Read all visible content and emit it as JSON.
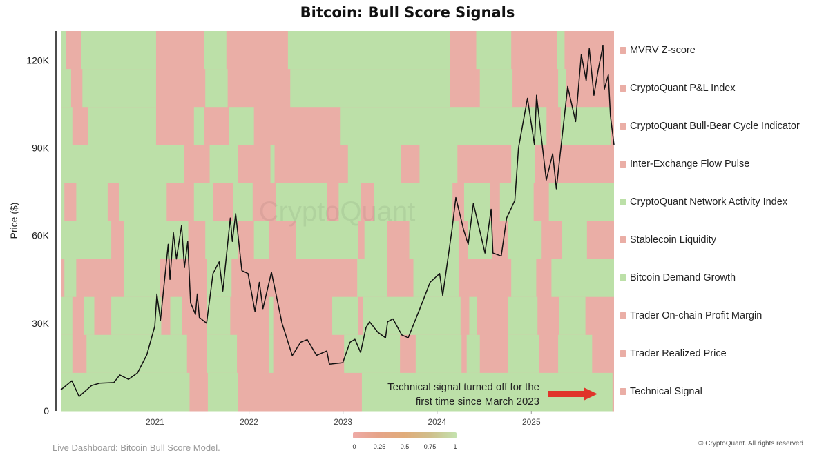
{
  "page": {
    "title": "Bitcoin: Bull Score Signals"
  },
  "chart_data": {
    "type": "heatmap",
    "title": "Bitcoin: Bull Score Signals",
    "ylabel": "Price ($)",
    "xlabel": "",
    "x_range": [
      "2020-01-01",
      "2025-11-18"
    ],
    "ylim": [
      0,
      130000
    ],
    "y_ticks": [
      0,
      30000,
      60000,
      90000,
      120000
    ],
    "y_tick_labels": [
      "0",
      "30K",
      "60K",
      "90K",
      "120K"
    ],
    "x_ticks": [
      "2021-01-01",
      "2022-01-01",
      "2023-01-01",
      "2024-01-01",
      "2025-01-01"
    ],
    "x_tick_labels": [
      "2021",
      "2022",
      "2023",
      "2024",
      "2025"
    ],
    "colors": {
      "on": "#bce0a8",
      "off": "#eaaea6",
      "price_line": "#111111",
      "arrow": "#e0342a"
    },
    "signals": [
      {
        "name": "MVRV Z-score",
        "latest": 0,
        "on_periods": [
          [
            "2020-01-01",
            "2020-01-20"
          ],
          [
            "2020-03-20",
            "2021-01-05"
          ],
          [
            "2021-07-10",
            "2021-10-05"
          ],
          [
            "2022-06-01",
            "2024-02-20"
          ],
          [
            "2024-06-01",
            "2024-10-15"
          ],
          [
            "2025-04-10",
            "2025-05-10"
          ]
        ]
      },
      {
        "name": "CryptoQuant P&L Index",
        "latest": 0,
        "on_periods": [
          [
            "2020-01-01",
            "2020-02-10"
          ],
          [
            "2020-03-25",
            "2021-01-05"
          ],
          [
            "2021-07-15",
            "2021-10-10"
          ],
          [
            "2022-06-10",
            "2024-02-20"
          ],
          [
            "2024-06-15",
            "2024-10-20"
          ],
          [
            "2025-04-15",
            "2025-05-15"
          ]
        ]
      },
      {
        "name": "CryptoQuant Bull-Bear Cycle Indicator",
        "latest": 0,
        "on_periods": [
          [
            "2020-01-01",
            "2020-02-15"
          ],
          [
            "2020-04-15",
            "2021-01-05"
          ],
          [
            "2021-06-01",
            "2021-07-10"
          ],
          [
            "2021-10-15",
            "2022-01-20"
          ],
          [
            "2022-12-20",
            "2025-03-01"
          ],
          [
            "2025-04-25",
            "2025-11-05"
          ]
        ]
      },
      {
        "name": "Inter-Exchange Flow Pulse",
        "latest": 0,
        "on_periods": [
          [
            "2020-01-01",
            "2021-04-25"
          ],
          [
            "2021-08-01",
            "2021-11-20"
          ],
          [
            "2022-03-25",
            "2022-04-10"
          ],
          [
            "2023-01-20",
            "2023-08-15"
          ],
          [
            "2023-10-25",
            "2024-03-20"
          ],
          [
            "2024-10-15",
            "2025-01-15"
          ]
        ]
      },
      {
        "name": "CryptoQuant Network Activity Index",
        "latest": 1,
        "on_periods": [
          [
            "2020-01-01",
            "2020-01-15"
          ],
          [
            "2020-03-01",
            "2020-07-01"
          ],
          [
            "2020-08-15",
            "2021-02-15"
          ],
          [
            "2021-06-01",
            "2021-08-15"
          ],
          [
            "2021-11-01",
            "2022-01-15"
          ],
          [
            "2022-04-15",
            "2022-11-01"
          ],
          [
            "2022-12-15",
            "2023-03-10"
          ],
          [
            "2023-05-01",
            "2024-03-01"
          ],
          [
            "2024-04-15",
            "2024-07-25"
          ],
          [
            "2024-09-01",
            "2025-01-10"
          ],
          [
            "2025-03-10",
            "2025-11-18"
          ]
        ]
      },
      {
        "name": "Stablecoin Liquidity",
        "latest": 0,
        "on_periods": [
          [
            "2020-01-01",
            "2020-07-15"
          ],
          [
            "2020-09-01",
            "2021-05-10"
          ],
          [
            "2021-07-15",
            "2021-11-20"
          ],
          [
            "2022-01-20",
            "2022-03-20"
          ],
          [
            "2022-07-01",
            "2023-03-01"
          ],
          [
            "2023-03-25",
            "2023-06-20"
          ],
          [
            "2023-09-15",
            "2024-03-25"
          ],
          [
            "2024-05-01",
            "2024-08-01"
          ],
          [
            "2024-10-01",
            "2025-02-10"
          ],
          [
            "2025-05-01",
            "2025-08-05"
          ]
        ]
      },
      {
        "name": "Bitcoin Demand Growth",
        "latest": 1,
        "on_periods": [
          [
            "2020-01-15",
            "2020-03-01"
          ],
          [
            "2020-09-01",
            "2021-01-20"
          ],
          [
            "2021-07-20",
            "2021-10-25"
          ],
          [
            "2023-02-25",
            "2023-06-20"
          ],
          [
            "2023-10-01",
            "2024-03-25"
          ],
          [
            "2024-10-15",
            "2025-01-20"
          ],
          [
            "2025-03-20",
            "2025-11-18"
          ]
        ]
      },
      {
        "name": "Trader On-chain Profit Margin",
        "latest": 0,
        "on_periods": [
          [
            "2020-01-01",
            "2020-02-15"
          ],
          [
            "2020-04-01",
            "2020-05-10"
          ],
          [
            "2020-07-15",
            "2021-01-25"
          ],
          [
            "2021-03-01",
            "2021-04-15"
          ],
          [
            "2021-07-20",
            "2021-10-20"
          ],
          [
            "2022-03-20",
            "2022-04-05"
          ],
          [
            "2022-11-20",
            "2023-03-01"
          ],
          [
            "2023-03-20",
            "2024-04-01"
          ],
          [
            "2024-05-05",
            "2024-06-05"
          ],
          [
            "2024-10-01",
            "2025-01-25"
          ],
          [
            "2025-04-20",
            "2025-07-30"
          ]
        ]
      },
      {
        "name": "Trader Realized Price",
        "latest": 0,
        "on_periods": [
          [
            "2020-01-01",
            "2020-02-15"
          ],
          [
            "2020-04-10",
            "2021-05-05"
          ],
          [
            "2021-07-20",
            "2021-11-15"
          ],
          [
            "2022-03-20",
            "2022-04-05"
          ],
          [
            "2023-01-05",
            "2023-08-10"
          ],
          [
            "2023-10-10",
            "2024-04-05"
          ],
          [
            "2024-04-25",
            "2024-06-15"
          ],
          [
            "2024-10-01",
            "2025-01-30"
          ],
          [
            "2025-04-15",
            "2025-08-25"
          ]
        ]
      },
      {
        "name": "Technical Signal",
        "latest": 0,
        "on_periods": [
          [
            "2020-01-01",
            "2021-05-15"
          ],
          [
            "2021-07-25",
            "2021-11-20"
          ],
          [
            "2023-03-15",
            "2025-11-12"
          ]
        ]
      }
    ],
    "price_series": [
      [
        "2020-01-01",
        7200
      ],
      [
        "2020-02-13",
        10300
      ],
      [
        "2020-03-12",
        4900
      ],
      [
        "2020-04-30",
        8700
      ],
      [
        "2020-06-01",
        9500
      ],
      [
        "2020-07-25",
        9700
      ],
      [
        "2020-08-17",
        12300
      ],
      [
        "2020-09-20",
        10800
      ],
      [
        "2020-10-25",
        13000
      ],
      [
        "2020-11-30",
        19200
      ],
      [
        "2020-12-31",
        29000
      ],
      [
        "2021-01-08",
        40000
      ],
      [
        "2021-01-22",
        31000
      ],
      [
        "2021-02-21",
        57000
      ],
      [
        "2021-02-28",
        45000
      ],
      [
        "2021-03-13",
        61000
      ],
      [
        "2021-03-25",
        52000
      ],
      [
        "2021-04-14",
        63500
      ],
      [
        "2021-04-25",
        49000
      ],
      [
        "2021-05-08",
        58000
      ],
      [
        "2021-05-19",
        37000
      ],
      [
        "2021-06-07",
        33000
      ],
      [
        "2021-06-14",
        40000
      ],
      [
        "2021-06-22",
        32000
      ],
      [
        "2021-07-20",
        30000
      ],
      [
        "2021-08-14",
        47000
      ],
      [
        "2021-09-07",
        51000
      ],
      [
        "2021-09-21",
        41000
      ],
      [
        "2021-10-20",
        66000
      ],
      [
        "2021-10-28",
        58000
      ],
      [
        "2021-11-10",
        67500
      ],
      [
        "2021-12-04",
        48000
      ],
      [
        "2021-12-28",
        47000
      ],
      [
        "2022-01-24",
        34000
      ],
      [
        "2022-02-10",
        44000
      ],
      [
        "2022-02-24",
        35000
      ],
      [
        "2022-03-29",
        47500
      ],
      [
        "2022-05-09",
        30000
      ],
      [
        "2022-06-18",
        18900
      ],
      [
        "2022-07-20",
        23500
      ],
      [
        "2022-08-15",
        24400
      ],
      [
        "2022-09-20",
        19000
      ],
      [
        "2022-10-30",
        20500
      ],
      [
        "2022-11-09",
        16000
      ],
      [
        "2022-12-31",
        16500
      ],
      [
        "2023-01-28",
        23500
      ],
      [
        "2023-02-16",
        24500
      ],
      [
        "2023-03-10",
        20000
      ],
      [
        "2023-03-31",
        28500
      ],
      [
        "2023-04-14",
        30500
      ],
      [
        "2023-05-15",
        27000
      ],
      [
        "2023-06-15",
        25000
      ],
      [
        "2023-06-23",
        30500
      ],
      [
        "2023-07-14",
        31500
      ],
      [
        "2023-08-17",
        26000
      ],
      [
        "2023-09-11",
        25000
      ],
      [
        "2023-10-24",
        34500
      ],
      [
        "2023-12-05",
        44000
      ],
      [
        "2024-01-11",
        47000
      ],
      [
        "2024-01-23",
        39500
      ],
      [
        "2024-02-28",
        62000
      ],
      [
        "2024-03-14",
        73000
      ],
      [
        "2024-04-13",
        62000
      ],
      [
        "2024-05-01",
        57000
      ],
      [
        "2024-05-21",
        71000
      ],
      [
        "2024-07-05",
        54000
      ],
      [
        "2024-07-29",
        69000
      ],
      [
        "2024-08-05",
        54000
      ],
      [
        "2024-09-06",
        53000
      ],
      [
        "2024-09-27",
        66000
      ],
      [
        "2024-10-29",
        72000
      ],
      [
        "2024-11-12",
        90000
      ],
      [
        "2024-12-17",
        107000
      ],
      [
        "2025-01-13",
        91000
      ],
      [
        "2025-01-21",
        108000
      ],
      [
        "2025-02-28",
        79000
      ],
      [
        "2025-03-25",
        88000
      ],
      [
        "2025-04-08",
        76000
      ],
      [
        "2025-05-22",
        111000
      ],
      [
        "2025-06-22",
        99000
      ],
      [
        "2025-07-14",
        122000
      ],
      [
        "2025-08-02",
        113000
      ],
      [
        "2025-08-14",
        124000
      ],
      [
        "2025-09-01",
        108000
      ],
      [
        "2025-09-18",
        117000
      ],
      [
        "2025-10-06",
        125000
      ],
      [
        "2025-10-11",
        110000
      ],
      [
        "2025-10-27",
        115000
      ],
      [
        "2025-11-04",
        101000
      ],
      [
        "2025-11-18",
        91000
      ]
    ],
    "annotation": {
      "text_line1": "Technical signal turned off for the",
      "text_line2": "first time since March 2023"
    },
    "watermark": "CryptoQuant",
    "color_scale": {
      "ticks": [
        "0",
        "0.25",
        "0.5",
        "0.75",
        "1"
      ]
    }
  },
  "footer": {
    "link_text": "Live Dashboard: Bitcoin Bull Score Model.",
    "copyright": "© CryptoQuant. All rights reserved"
  }
}
